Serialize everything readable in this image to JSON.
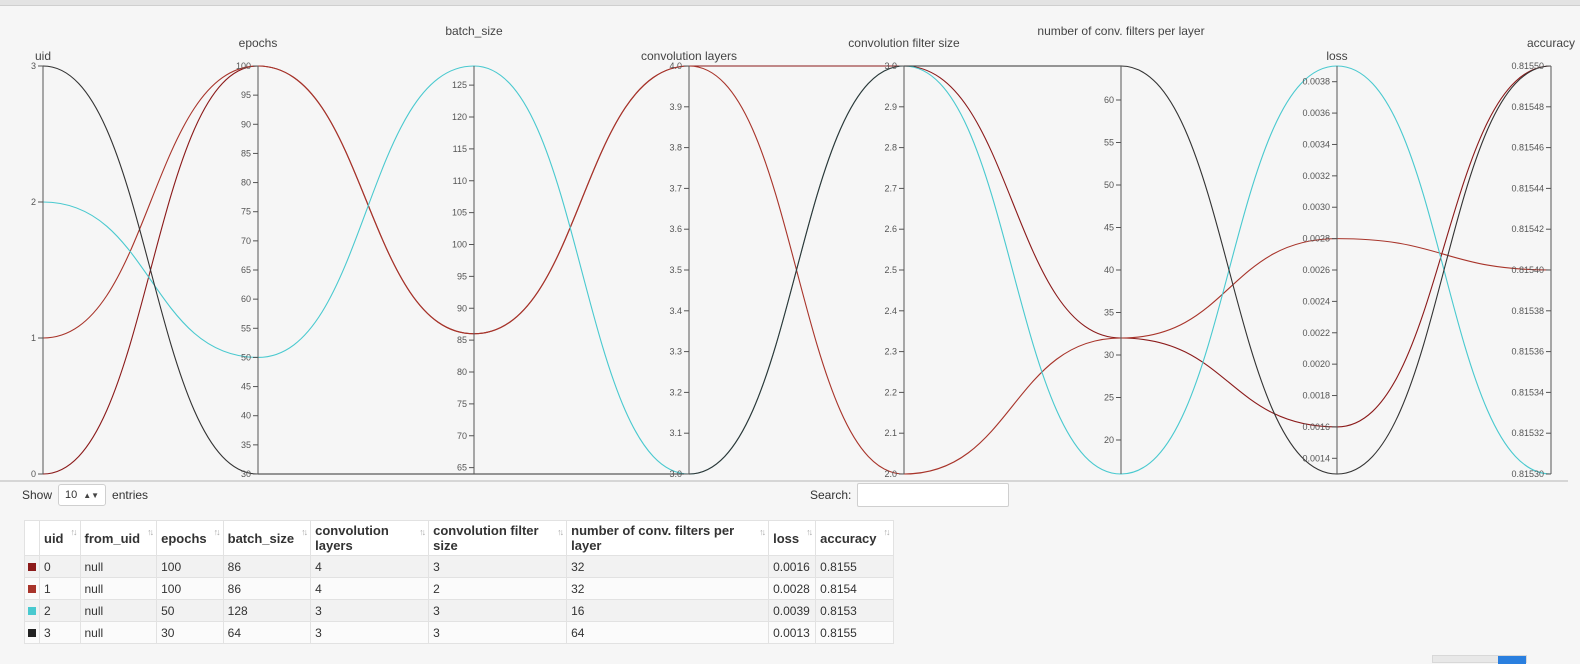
{
  "chart_data": {
    "type": "parallel_coordinates",
    "axes": [
      {
        "key": "uid",
        "label": "uid",
        "domain": [
          0,
          3
        ],
        "ticks": [
          0,
          1,
          2,
          3
        ],
        "ticklabels": [
          "0",
          "1",
          "2",
          "3"
        ]
      },
      {
        "key": "epochs",
        "label": "epochs",
        "domain": [
          30,
          100
        ],
        "ticks": [
          30,
          35,
          40,
          45,
          50,
          55,
          60,
          65,
          70,
          75,
          80,
          85,
          90,
          95,
          100
        ],
        "ticklabels": [
          "30",
          "35",
          "40",
          "45",
          "50",
          "55",
          "60",
          "65",
          "70",
          "75",
          "80",
          "85",
          "90",
          "95",
          "100"
        ]
      },
      {
        "key": "batch_size",
        "label": "batch_size",
        "domain": [
          64,
          128
        ],
        "ticks": [
          65,
          70,
          75,
          80,
          85,
          90,
          95,
          100,
          105,
          110,
          115,
          120,
          125
        ],
        "ticklabels": [
          "65",
          "70",
          "75",
          "80",
          "85",
          "90",
          "95",
          "100",
          "105",
          "110",
          "115",
          "120",
          "125"
        ]
      },
      {
        "key": "conv_layers",
        "label": "convolution layers",
        "domain": [
          3,
          4
        ],
        "ticks": [
          3.0,
          3.1,
          3.2,
          3.3,
          3.4,
          3.5,
          3.6,
          3.7,
          3.8,
          3.9,
          4.0
        ],
        "ticklabels": [
          "3.0",
          "3.1",
          "3.2",
          "3.3",
          "3.4",
          "3.5",
          "3.6",
          "3.7",
          "3.8",
          "3.9",
          "4.0"
        ]
      },
      {
        "key": "conv_filter_size",
        "label": "convolution filter size",
        "domain": [
          2,
          3
        ],
        "ticks": [
          2.0,
          2.1,
          2.2,
          2.3,
          2.4,
          2.5,
          2.6,
          2.7,
          2.8,
          2.9,
          3.0
        ],
        "ticklabels": [
          "2.0",
          "2.1",
          "2.2",
          "2.3",
          "2.4",
          "2.5",
          "2.6",
          "2.7",
          "2.8",
          "2.9",
          "3.0"
        ]
      },
      {
        "key": "num_filters",
        "label": "number of conv. filters per layer",
        "domain": [
          16,
          64
        ],
        "ticks": [
          20,
          25,
          30,
          35,
          40,
          45,
          50,
          55,
          60
        ],
        "ticklabels": [
          "20",
          "25",
          "30",
          "35",
          "40",
          "45",
          "50",
          "55",
          "60"
        ]
      },
      {
        "key": "loss",
        "label": "loss",
        "domain": [
          0.0013,
          0.0039
        ],
        "ticks": [
          0.0014,
          0.0016,
          0.0018,
          0.002,
          0.0022,
          0.0024,
          0.0026,
          0.0028,
          0.003,
          0.0032,
          0.0034,
          0.0036,
          0.0038
        ],
        "ticklabels": [
          "0.0014",
          "0.0016",
          "0.0018",
          "0.0020",
          "0.0022",
          "0.0024",
          "0.0026",
          "0.0028",
          "0.0030",
          "0.0032",
          "0.0034",
          "0.0036",
          "0.0038"
        ]
      },
      {
        "key": "accuracy",
        "label": "accuracy",
        "domain": [
          0.8153,
          0.8155
        ],
        "ticks": [
          0.8153,
          0.81532,
          0.81534,
          0.81536,
          0.81538,
          0.8154,
          0.81542,
          0.81544,
          0.81546,
          0.81548,
          0.8155
        ],
        "ticklabels": [
          "0.81530",
          "0.81532",
          "0.81534",
          "0.81536",
          "0.81538",
          "0.81540",
          "0.81542",
          "0.81544",
          "0.81546",
          "0.81548",
          "0.81550"
        ]
      }
    ],
    "series": [
      {
        "uid": 0,
        "color": "#8b1a1a",
        "values": {
          "uid": 0,
          "epochs": 100,
          "batch_size": 86,
          "conv_layers": 4,
          "conv_filter_size": 3,
          "num_filters": 32,
          "loss": 0.0016,
          "accuracy": 0.8155
        }
      },
      {
        "uid": 1,
        "color": "#a8342a",
        "values": {
          "uid": 1,
          "epochs": 100,
          "batch_size": 86,
          "conv_layers": 4,
          "conv_filter_size": 2,
          "num_filters": 32,
          "loss": 0.0028,
          "accuracy": 0.8154
        }
      },
      {
        "uid": 2,
        "color": "#49c9cf",
        "values": {
          "uid": 2,
          "epochs": 50,
          "batch_size": 128,
          "conv_layers": 3,
          "conv_filter_size": 3,
          "num_filters": 16,
          "loss": 0.0039,
          "accuracy": 0.8153
        }
      },
      {
        "uid": 3,
        "color": "#333333",
        "values": {
          "uid": 3,
          "epochs": 30,
          "batch_size": 64,
          "conv_layers": 3,
          "conv_filter_size": 3,
          "num_filters": 64,
          "loss": 0.0013,
          "accuracy": 0.8155
        }
      }
    ]
  },
  "controls": {
    "show_label": "Show",
    "entries_value": "10",
    "entries_label": "entries",
    "search_label": "Search:",
    "search_value": ""
  },
  "table": {
    "headers": [
      "uid",
      "from_uid",
      "epochs",
      "batch_size",
      "convolution layers",
      "convolution filter size",
      "number of conv. filters per layer",
      "loss",
      "accuracy"
    ],
    "rows": [
      {
        "color": "#8b1a1a",
        "cells": [
          "0",
          "null",
          "100",
          "86",
          "4",
          "3",
          "32",
          "0.0016",
          "0.8155"
        ]
      },
      {
        "color": "#a8342a",
        "cells": [
          "1",
          "null",
          "100",
          "86",
          "4",
          "2",
          "32",
          "0.0028",
          "0.8154"
        ]
      },
      {
        "color": "#49c9cf",
        "cells": [
          "2",
          "null",
          "50",
          "128",
          "3",
          "3",
          "16",
          "0.0039",
          "0.8153"
        ]
      },
      {
        "color": "#222222",
        "cells": [
          "3",
          "null",
          "30",
          "64",
          "3",
          "3",
          "64",
          "0.0013",
          "0.8155"
        ]
      }
    ]
  }
}
